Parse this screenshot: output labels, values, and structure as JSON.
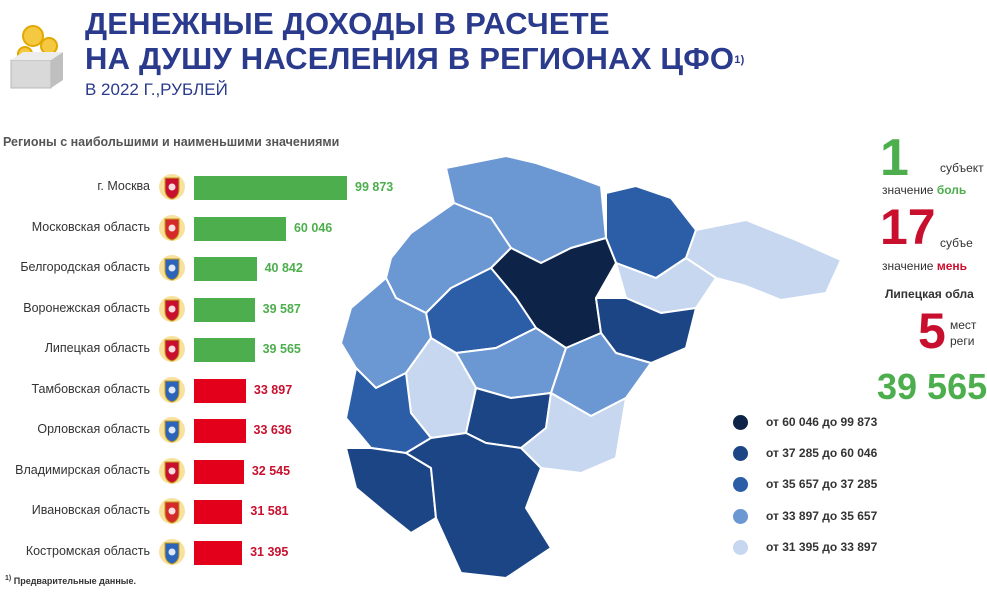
{
  "header": {
    "title_line1": "ДЕНЕЖНЫЕ ДОХОДЫ В РАСЧЕТЕ",
    "title_line2": "НА ДУШУ НАСЕЛЕНИЯ В РЕГИОНАХ ЦФО",
    "title_sup": "1)",
    "subtitle": "В 2022 Г.,РУБЛЕЙ"
  },
  "section_title": "Регионы с наибольшими и наименьшими значениями",
  "footnote": {
    "mark": "1)",
    "text": "Предварительные данные."
  },
  "colors": {
    "above": "#4cae4c",
    "below": "#e3001b",
    "title": "#2a3a8c"
  },
  "chart_data": {
    "type": "bar",
    "orientation": "horizontal",
    "title": "Регионы с наибольшими и наименьшими значениями",
    "categories": [
      "г. Москва",
      "Московская область",
      "Белгородская область",
      "Воронежская область",
      "Липецкая  область",
      "Тамбовская область",
      "Орловская область",
      "Владимирская область",
      "Ивановская область",
      "Костромская область"
    ],
    "value_labels": [
      "99 873",
      "60 046",
      "40 842",
      "39 587",
      "39 565",
      "33 897",
      "33 636",
      "32 545",
      "31 581",
      "31 395"
    ],
    "values": [
      99873,
      60046,
      40842,
      39587,
      39565,
      33897,
      33636,
      32545,
      31581,
      31395
    ],
    "group": [
      "above",
      "above",
      "above",
      "above",
      "above",
      "below",
      "below",
      "below",
      "below",
      "below"
    ],
    "xlim": [
      0,
      99873
    ]
  },
  "legend": [
    {
      "label": "от  60 046  до 99 873",
      "color": "#0d2347"
    },
    {
      "label": "от  37 285  до 60 046",
      "color": "#1c4586"
    },
    {
      "label": "от  35 657  до 37 285",
      "color": "#2c5ea8"
    },
    {
      "label": "от  33 897  до 35 657",
      "color": "#6b97d3"
    },
    {
      "label": "от  31 395  до 33 897",
      "color": "#c6d7ef"
    }
  ],
  "stats": {
    "above_count": "1",
    "above_word": "субъект",
    "above_text1": "значение ",
    "above_text2": "боль",
    "below_count": "17",
    "below_word": "субъе",
    "below_text1": "значение ",
    "below_text2": "мень",
    "region_name": "Липецкая обла",
    "rank": "5",
    "rank_word1": "мест",
    "rank_word2": "реги",
    "region_value": "39 565"
  }
}
